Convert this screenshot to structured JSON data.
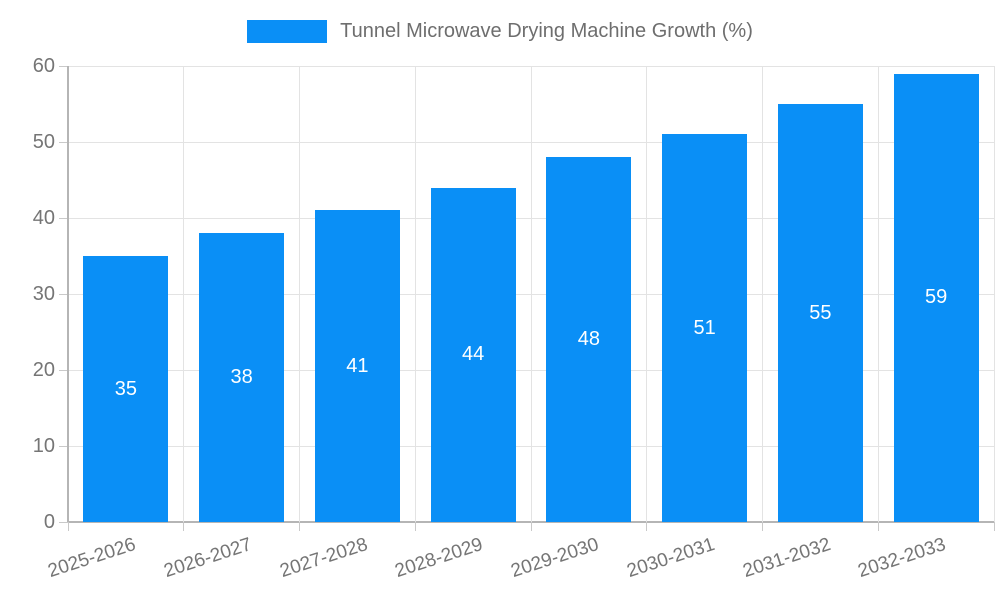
{
  "legend": {
    "label": "Tunnel Microwave Drying Machine Growth (%)"
  },
  "chart_data": {
    "type": "bar",
    "title": "Tunnel Microwave Drying Machine Growth (%)",
    "categories": [
      "2025-2026",
      "2026-2027",
      "2027-2028",
      "2028-2029",
      "2029-2030",
      "2030-2031",
      "2031-2032",
      "2032-2033"
    ],
    "values": [
      35,
      38,
      41,
      44,
      48,
      51,
      55,
      59
    ],
    "xlabel": "",
    "ylabel": "",
    "ylim": [
      0,
      60
    ],
    "ytick_step": 10,
    "ytick_labels": [
      "0",
      "10",
      "20",
      "30",
      "40",
      "50",
      "60"
    ],
    "grid": true,
    "legend_position": "top-center",
    "value_labels": "inside-center"
  },
  "colors": {
    "bar": "#0a8ff6",
    "value_label": "#ffffff",
    "axis_text": "#757575",
    "legend_text": "#6e6e6e",
    "grid_line": "#e3e3e3",
    "axis_line": "#b5b5b5",
    "tick_line": "#c9c9c9",
    "background": "#ffffff"
  }
}
